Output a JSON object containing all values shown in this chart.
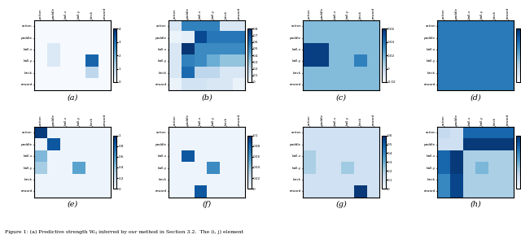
{
  "labels": [
    "action",
    "paddle",
    "ball-x",
    "ball-y",
    "brick",
    "reward"
  ],
  "panels": [
    {
      "label": "(a)",
      "vmin": 0,
      "vmax": 4,
      "cbar_ticks": [
        0,
        1,
        2,
        3,
        4
      ],
      "data": [
        [
          0.02,
          0.02,
          0.02,
          0.02,
          0.02,
          0.02
        ],
        [
          0.02,
          0.02,
          0.02,
          0.02,
          0.02,
          0.02
        ],
        [
          0.02,
          0.55,
          0.02,
          0.02,
          0.02,
          0.02
        ],
        [
          0.02,
          0.55,
          0.02,
          0.02,
          3.2,
          0.02
        ],
        [
          0.02,
          0.02,
          0.02,
          0.02,
          1.1,
          0.02
        ],
        [
          0.02,
          0.02,
          0.02,
          0.02,
          0.02,
          0.02
        ]
      ]
    },
    {
      "label": "(b)",
      "vmin": 0.0,
      "vmax": 0.8,
      "cbar_ticks": [
        0.0,
        0.1,
        0.2,
        0.3,
        0.4,
        0.5,
        0.6,
        0.7,
        0.8
      ],
      "data": [
        [
          0.12,
          0.55,
          0.55,
          0.55,
          0.12,
          0.12
        ],
        [
          0.05,
          0.08,
          0.72,
          0.58,
          0.58,
          0.58
        ],
        [
          0.12,
          0.78,
          0.52,
          0.52,
          0.52,
          0.52
        ],
        [
          0.12,
          0.55,
          0.52,
          0.4,
          0.32,
          0.32
        ],
        [
          0.12,
          0.62,
          0.22,
          0.22,
          0.12,
          0.12
        ],
        [
          0.05,
          0.15,
          0.15,
          0.12,
          0.12,
          0.05
        ]
      ]
    },
    {
      "label": "(c)",
      "vmin": -0.02,
      "vmax": 0.06,
      "cbar_ticks": [
        -0.02,
        0.0,
        0.02,
        0.04,
        0.06
      ],
      "data": [
        [
          0.015,
          0.015,
          0.015,
          0.015,
          0.015,
          0.015
        ],
        [
          0.015,
          0.015,
          0.015,
          0.015,
          0.015,
          0.015
        ],
        [
          0.055,
          0.055,
          0.015,
          0.015,
          0.015,
          0.015
        ],
        [
          0.055,
          0.055,
          0.015,
          0.015,
          0.035,
          0.015
        ],
        [
          0.015,
          0.015,
          0.015,
          0.015,
          0.015,
          0.015
        ],
        [
          0.015,
          0.015,
          0.015,
          0.015,
          0.015,
          0.015
        ]
      ]
    },
    {
      "label": "(d)",
      "vmin": -0.12,
      "vmax": 0.02,
      "cbar_ticks": [
        0.02,
        0.0,
        -0.02,
        -0.04,
        -0.06,
        -0.08,
        -0.1,
        -0.12
      ],
      "data": [
        [
          -0.02,
          -0.02,
          -0.02,
          -0.02,
          -0.02,
          -0.02
        ],
        [
          -0.02,
          -0.02,
          -0.02,
          -0.02,
          -0.02,
          -0.02
        ],
        [
          -0.02,
          -0.02,
          -0.02,
          -0.02,
          -0.02,
          -0.02
        ],
        [
          -0.02,
          -0.02,
          -0.02,
          -0.02,
          -0.02,
          -0.02
        ],
        [
          -0.02,
          -0.02,
          -0.02,
          -0.02,
          -0.02,
          -0.02
        ],
        [
          -0.02,
          -0.02,
          -0.02,
          -0.02,
          -0.02,
          -0.02
        ]
      ]
    },
    {
      "label": "(e)",
      "vmin": 0.0,
      "vmax": 1.0,
      "cbar_ticks": [
        0.0,
        0.2,
        0.4,
        0.6,
        0.8,
        1.0
      ],
      "data": [
        [
          0.95,
          0.05,
          0.05,
          0.05,
          0.05,
          0.05
        ],
        [
          0.05,
          0.85,
          0.05,
          0.05,
          0.05,
          0.05
        ],
        [
          0.45,
          0.05,
          0.05,
          0.05,
          0.05,
          0.05
        ],
        [
          0.35,
          0.05,
          0.05,
          0.55,
          0.05,
          0.05
        ],
        [
          0.05,
          0.05,
          0.05,
          0.05,
          0.05,
          0.05
        ],
        [
          0.05,
          0.05,
          0.05,
          0.05,
          0.05,
          0.05
        ]
      ]
    },
    {
      "label": "(f)",
      "vmin": 0.0,
      "vmax": 0.1,
      "cbar_ticks": [
        0.0,
        0.02,
        0.04,
        0.06,
        0.08,
        0.1
      ],
      "data": [
        [
          0.005,
          0.005,
          0.005,
          0.005,
          0.005,
          0.005
        ],
        [
          0.005,
          0.005,
          0.005,
          0.005,
          0.005,
          0.005
        ],
        [
          0.005,
          0.085,
          0.005,
          0.005,
          0.005,
          0.005
        ],
        [
          0.005,
          0.005,
          0.005,
          0.065,
          0.005,
          0.005
        ],
        [
          0.005,
          0.005,
          0.005,
          0.005,
          0.005,
          0.005
        ],
        [
          0.005,
          0.005,
          0.085,
          0.005,
          0.005,
          0.005
        ]
      ]
    },
    {
      "label": "(g)",
      "vmin": 0.0,
      "vmax": 0.6,
      "cbar_ticks": [
        0.0,
        0.1,
        0.2,
        0.3,
        0.4,
        0.5,
        0.6
      ],
      "data": [
        [
          0.12,
          0.12,
          0.12,
          0.12,
          0.12,
          0.12
        ],
        [
          0.12,
          0.12,
          0.12,
          0.12,
          0.12,
          0.12
        ],
        [
          0.2,
          0.12,
          0.12,
          0.12,
          0.12,
          0.12
        ],
        [
          0.2,
          0.12,
          0.12,
          0.22,
          0.12,
          0.12
        ],
        [
          0.12,
          0.12,
          0.12,
          0.12,
          0.12,
          0.12
        ],
        [
          0.12,
          0.12,
          0.12,
          0.12,
          0.58,
          0.12
        ]
      ]
    },
    {
      "label": "(h)",
      "vmin": -2,
      "vmax": 10,
      "cbar_ticks": [
        -2,
        0,
        2,
        4,
        6,
        8,
        10
      ],
      "data": [
        [
          1.0,
          0.5,
          7.5,
          7.5,
          7.5,
          7.5
        ],
        [
          0.5,
          0.5,
          9.5,
          9.5,
          9.5,
          9.5
        ],
        [
          7.5,
          9.5,
          2.0,
          2.0,
          2.0,
          2.0
        ],
        [
          7.5,
          9.5,
          2.0,
          3.5,
          2.0,
          2.0
        ],
        [
          6.0,
          9.0,
          2.0,
          2.0,
          2.0,
          2.0
        ],
        [
          6.0,
          9.0,
          2.0,
          2.0,
          2.0,
          2.0
        ]
      ]
    }
  ],
  "cmap": "Blues",
  "figure_caption": "Figure 1: (a) Predictive strength Wᵢⱼ inferred by our method in Section 3.2.  The (i, j) element",
  "figsize": [
    6.4,
    2.94
  ],
  "dpi": 100
}
